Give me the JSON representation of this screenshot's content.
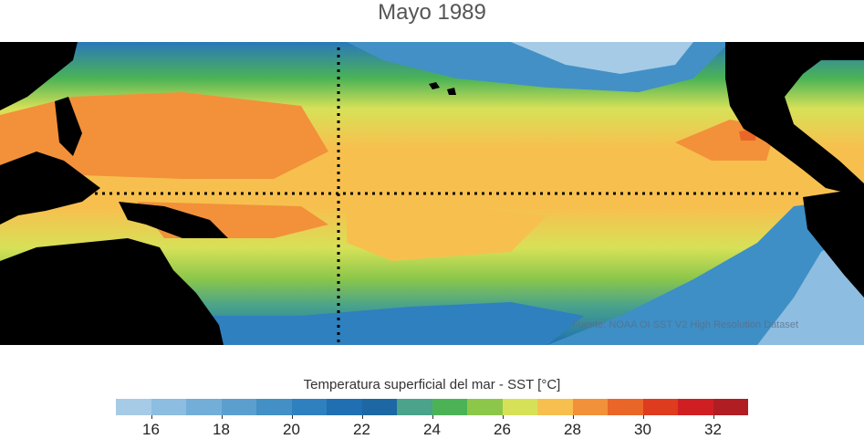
{
  "title": "Mayo 1989",
  "source": "Fuente: NOAA OI SST V2 High Resolution Dataset",
  "colorbar": {
    "title": "Temperatura superficial del mar - SST  [°C]",
    "colors": [
      "#a6cbe6",
      "#8dbde0",
      "#73aed8",
      "#5b9fcf",
      "#4390c6",
      "#2f80bf",
      "#1f6fb2",
      "#1d67a4",
      "#4aa38a",
      "#4bb356",
      "#8cc74a",
      "#d7e158",
      "#f7c04e",
      "#f2913a",
      "#ea6628",
      "#de3b1f",
      "#d01f23",
      "#b01e24"
    ],
    "tick_values": [
      16,
      18,
      20,
      22,
      24,
      26,
      28,
      30,
      32
    ],
    "tick_labels": [
      "16",
      "18",
      "20",
      "22",
      "24",
      "26",
      "28",
      "30",
      "32"
    ],
    "min": 15,
    "max": 33
  }
}
